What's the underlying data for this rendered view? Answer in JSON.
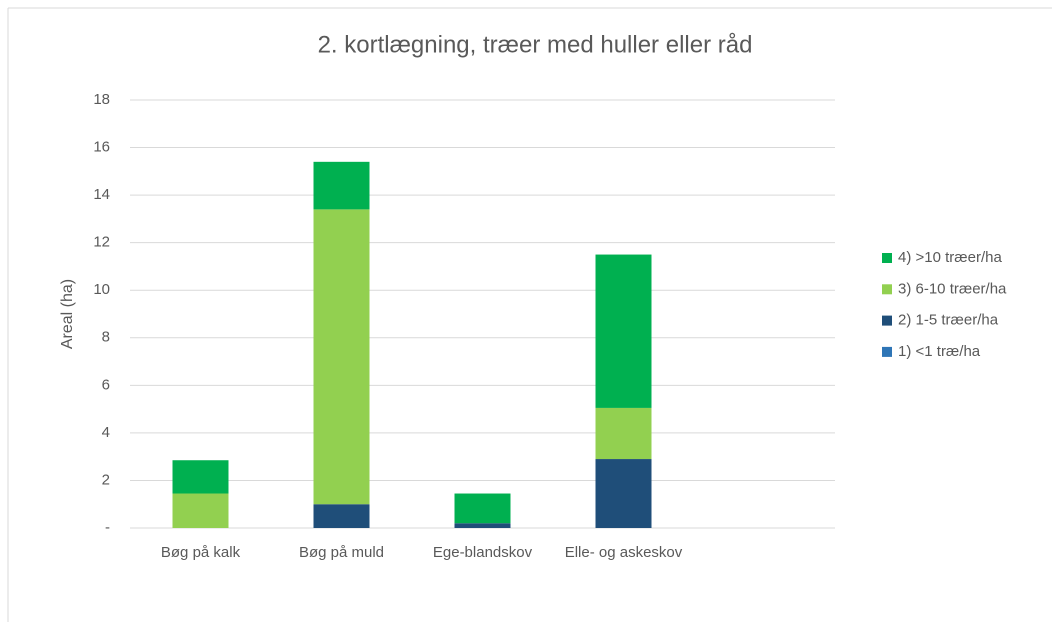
{
  "chart_data": {
    "type": "bar",
    "stacked": true,
    "title": "2. kortlægning, træer med huller eller råd",
    "y_label": "Areal (ha)",
    "categories": [
      "Bøg på kalk",
      "Bøg på muld",
      "Ege-blandskov",
      "Elle- og askeskov",
      null
    ],
    "series": [
      {
        "name": "1) <1 træ/ha",
        "color": "#2e75b6",
        "values": [
          0,
          0,
          0,
          0,
          null
        ]
      },
      {
        "name": "2) 1-5 træer/ha",
        "color": "#1f4e79",
        "values": [
          0,
          1.0,
          0.2,
          2.9,
          null
        ]
      },
      {
        "name": "3) 6-10 træer/ha",
        "color": "#92d050",
        "values": [
          1.45,
          12.4,
          0,
          2.15,
          null
        ]
      },
      {
        "name": "4) >10 træer/ha",
        "color": "#00b050",
        "values": [
          1.4,
          2.0,
          1.25,
          6.45,
          null
        ]
      }
    ],
    "ylim": [
      0,
      18
    ],
    "yticks": [
      {
        "value": 0,
        "label": "-"
      },
      2,
      4,
      6,
      8,
      10,
      12,
      14,
      16,
      18
    ],
    "grid": true,
    "legend": "right"
  }
}
